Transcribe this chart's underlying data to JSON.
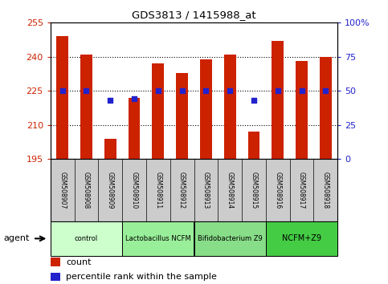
{
  "title": "GDS3813 / 1415988_at",
  "samples": [
    "GSM508907",
    "GSM508908",
    "GSM508909",
    "GSM508910",
    "GSM508911",
    "GSM508912",
    "GSM508913",
    "GSM508914",
    "GSM508915",
    "GSM508916",
    "GSM508917",
    "GSM508918"
  ],
  "counts": [
    249,
    241,
    204,
    222,
    237,
    233,
    239,
    241,
    207,
    247,
    238,
    240
  ],
  "percentile_ranks": [
    50,
    50,
    43,
    44,
    50,
    50,
    50,
    50,
    43,
    50,
    50,
    50
  ],
  "bar_color": "#CC2200",
  "dot_color": "#2222CC",
  "ylim_left": [
    195,
    255
  ],
  "ylim_right": [
    0,
    100
  ],
  "yticks_left": [
    195,
    210,
    225,
    240,
    255
  ],
  "yticks_right": [
    0,
    25,
    50,
    75,
    100
  ],
  "ytick_labels_right": [
    "0",
    "25",
    "50",
    "75",
    "100%"
  ],
  "groups": [
    {
      "label": "control",
      "start": 0,
      "end": 3,
      "color": "#CCFFCC"
    },
    {
      "label": "Lactobacillus NCFM",
      "start": 3,
      "end": 6,
      "color": "#99EE99"
    },
    {
      "label": "Bifidobacterium Z9",
      "start": 6,
      "end": 9,
      "color": "#88DD88"
    },
    {
      "label": "NCFM+Z9",
      "start": 9,
      "end": 12,
      "color": "#44CC44"
    }
  ],
  "agent_label": "agent",
  "legend_count_label": "count",
  "legend_percentile_label": "percentile rank within the sample",
  "grid_color": "black",
  "tick_label_color_left": "#CC2200",
  "tick_label_color_right": "#2222CC",
  "bar_width": 0.5,
  "xlabel_bg": "#CCCCCC",
  "xlabel_border": "#888888"
}
